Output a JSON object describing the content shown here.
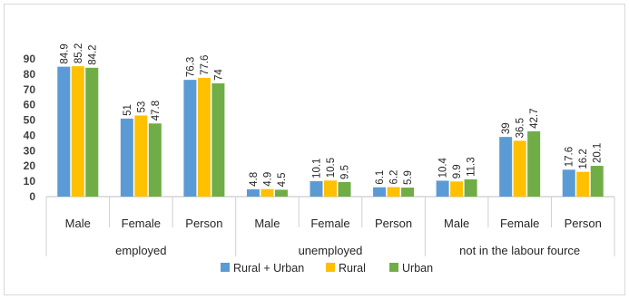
{
  "chart_data": {
    "type": "bar",
    "title": "",
    "xlabel": "",
    "ylabel": "",
    "ylim": [
      0,
      90
    ],
    "yticks": [
      0,
      10,
      20,
      30,
      40,
      50,
      60,
      70,
      80,
      90
    ],
    "grid": false,
    "legend_position": "bottom",
    "groups": [
      {
        "label": "employed",
        "categories": [
          "Male",
          "Female",
          "Person"
        ]
      },
      {
        "label": "unemployed",
        "categories": [
          "Male",
          "Female",
          "Person"
        ]
      },
      {
        "label": "not in the labour fource",
        "categories": [
          "Male",
          "Female",
          "Person"
        ]
      }
    ],
    "categories": [
      "Male",
      "Female",
      "Person",
      "Male",
      "Female",
      "Person",
      "Male",
      "Female",
      "Person"
    ],
    "series": [
      {
        "name": "Rural + Urban",
        "color": "#5b9bd5",
        "values": [
          84.9,
          51,
          76.3,
          4.8,
          10.1,
          6.1,
          10.4,
          39,
          17.6
        ]
      },
      {
        "name": "Rural",
        "color": "#ffc000",
        "values": [
          85.2,
          53,
          77.6,
          4.9,
          10.5,
          6.2,
          9.9,
          36.5,
          16.2
        ]
      },
      {
        "name": "Urban",
        "color": "#70ad47",
        "values": [
          84.2,
          47.8,
          74,
          4.5,
          9.5,
          5.9,
          11.3,
          42.7,
          20.1
        ]
      }
    ]
  }
}
